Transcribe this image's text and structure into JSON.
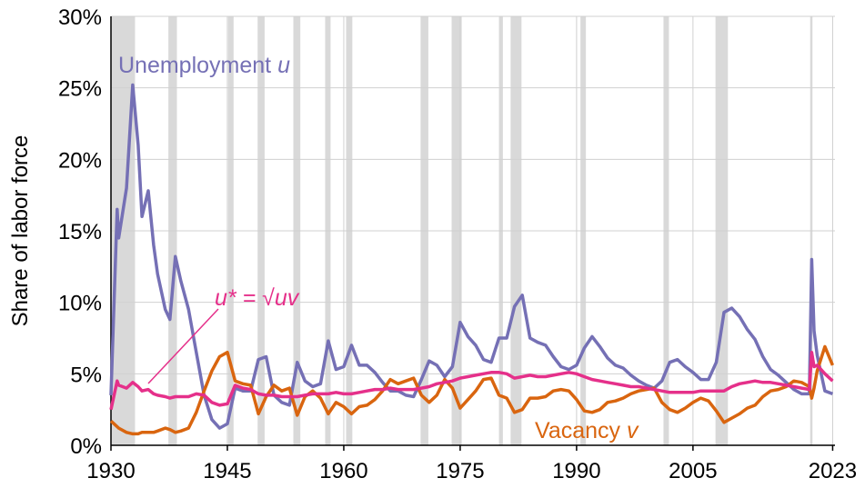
{
  "chart_data": {
    "type": "line",
    "y_label": "Share of labor force",
    "x": [
      1930,
      1930.8,
      1931,
      1932,
      1932.8,
      1933.5,
      1934,
      1934.8,
      1935.5,
      1936,
      1937,
      1937.6,
      1938.3,
      1939,
      1940,
      1941,
      1942,
      1943,
      1944,
      1945,
      1946,
      1947,
      1948,
      1949,
      1950,
      1951,
      1952,
      1953,
      1954,
      1955,
      1956,
      1957,
      1958,
      1959,
      1960,
      1961,
      1962,
      1963,
      1964,
      1965,
      1966,
      1967,
      1968,
      1969,
      1970,
      1971,
      1972,
      1973,
      1974,
      1975,
      1976,
      1977,
      1978,
      1979,
      1980,
      1981,
      1982,
      1983,
      1984,
      1985,
      1986,
      1987,
      1988,
      1989,
      1990,
      1991,
      1992,
      1993,
      1994,
      1995,
      1996,
      1997,
      1998,
      1999,
      2000,
      2001,
      2002,
      2003,
      2004,
      2005,
      2006,
      2007,
      2008,
      2009,
      2010,
      2011,
      2012,
      2013,
      2014,
      2015,
      2016,
      2017,
      2018,
      2019,
      2020,
      2020.3,
      2020.6,
      2021,
      2022,
      2023
    ],
    "series": [
      {
        "name": "Unemployment",
        "var": "u",
        "color": "#7570b5",
        "values": [
          3.5,
          16.5,
          14.5,
          18,
          25.2,
          21,
          16,
          17.8,
          14,
          12,
          9.5,
          8.8,
          13.2,
          11.5,
          9.5,
          6.5,
          3.5,
          1.8,
          1.2,
          1.5,
          4,
          3.8,
          3.8,
          6,
          6.2,
          3.5,
          3.0,
          2.8,
          5.8,
          4.5,
          4.1,
          4.3,
          7.3,
          5.3,
          5.5,
          7,
          5.6,
          5.6,
          5.1,
          4.4,
          3.8,
          3.8,
          3.5,
          3.4,
          4.6,
          5.9,
          5.6,
          4.8,
          5.5,
          8.6,
          7.6,
          7,
          6,
          5.8,
          7.5,
          7.5,
          9.7,
          10.5,
          7.5,
          7.2,
          7,
          6.2,
          5.5,
          5.3,
          5.6,
          6.8,
          7.6,
          6.9,
          6.1,
          5.6,
          5.4,
          4.9,
          4.5,
          4.2,
          4.0,
          4.5,
          5.8,
          6.0,
          5.5,
          5.1,
          4.6,
          4.6,
          5.8,
          9.3,
          9.6,
          9.0,
          8.1,
          7.4,
          6.2,
          5.3,
          4.9,
          4.4,
          3.9,
          3.6,
          3.6,
          13,
          8,
          6.3,
          3.8,
          3.6
        ]
      },
      {
        "name": "Vacancy",
        "var": "v",
        "color": "#d9650f",
        "values": [
          1.7,
          1.3,
          1.2,
          0.9,
          0.8,
          0.8,
          0.9,
          0.9,
          0.9,
          1.0,
          1.2,
          1.1,
          0.9,
          1.0,
          1.2,
          2.3,
          3.8,
          5.2,
          6.2,
          6.5,
          4.5,
          4.3,
          4.2,
          2.2,
          3.4,
          4.2,
          3.8,
          4.0,
          2.1,
          3.4,
          3.8,
          3.3,
          2.2,
          3.0,
          2.7,
          2.2,
          2.7,
          2.8,
          3.2,
          3.8,
          4.6,
          4.3,
          4.5,
          4.7,
          3.5,
          3.0,
          3.5,
          4.6,
          4.0,
          2.6,
          3.2,
          3.8,
          4.6,
          4.7,
          3.5,
          3.3,
          2.3,
          2.5,
          3.3,
          3.3,
          3.4,
          3.8,
          3.9,
          3.8,
          3.2,
          2.4,
          2.3,
          2.5,
          3.0,
          3.1,
          3.3,
          3.6,
          3.8,
          3.9,
          4.0,
          3.0,
          2.5,
          2.3,
          2.6,
          3.0,
          3.3,
          3.1,
          2.4,
          1.6,
          1.9,
          2.2,
          2.6,
          2.8,
          3.4,
          3.8,
          3.9,
          4.1,
          4.5,
          4.4,
          4.1,
          3.3,
          4.0,
          5.2,
          6.9,
          5.6
        ]
      },
      {
        "name": "u* = √uv",
        "color": "#e5308a",
        "values": [
          2.5,
          4.5,
          4.2,
          4.0,
          4.4,
          4.1,
          3.8,
          3.9,
          3.6,
          3.5,
          3.4,
          3.3,
          3.4,
          3.4,
          3.4,
          3.6,
          3.5,
          3.0,
          2.8,
          2.9,
          4.2,
          4.0,
          3.9,
          3.6,
          3.5,
          3.5,
          3.4,
          3.4,
          3.4,
          3.5,
          3.6,
          3.6,
          3.6,
          3.7,
          3.6,
          3.6,
          3.7,
          3.8,
          3.9,
          3.9,
          4.0,
          3.9,
          3.9,
          3.9,
          4.0,
          4.1,
          4.3,
          4.4,
          4.5,
          4.7,
          4.8,
          4.9,
          5.0,
          5.1,
          5.1,
          5.0,
          4.7,
          4.8,
          4.9,
          4.8,
          4.8,
          4.9,
          5.0,
          5.1,
          5.0,
          4.8,
          4.6,
          4.5,
          4.4,
          4.3,
          4.2,
          4.1,
          4.1,
          4.0,
          3.9,
          3.8,
          3.7,
          3.7,
          3.7,
          3.7,
          3.8,
          3.8,
          3.8,
          3.8,
          4.1,
          4.3,
          4.4,
          4.5,
          4.4,
          4.4,
          4.3,
          4.2,
          4.1,
          4.0,
          3.9,
          6.5,
          5.5,
          5.6,
          5.0,
          4.5
        ]
      }
    ],
    "recessions": [
      [
        1930,
        1933.1
      ],
      [
        1937.4,
        1938.5
      ],
      [
        1945.1,
        1945.8
      ],
      [
        1948.9,
        1949.8
      ],
      [
        1953.5,
        1954.4
      ],
      [
        1957.6,
        1958.3
      ],
      [
        1960.3,
        1961.1
      ],
      [
        1969.9,
        1970.9
      ],
      [
        1973.9,
        1975.2
      ],
      [
        1980.0,
        1980.5
      ],
      [
        1981.5,
        1982.9
      ],
      [
        1990.5,
        1991.2
      ],
      [
        2001.2,
        2001.9
      ],
      [
        2007.9,
        2009.5
      ],
      [
        2020.1,
        2020.4
      ]
    ],
    "recession_color": "#d9d9d9",
    "xlim": [
      1930,
      2023.3
    ],
    "ylim": [
      0,
      30
    ],
    "xticks": [
      1930,
      1945,
      1960,
      1975,
      1990,
      2005,
      2023
    ],
    "yticks": [
      {
        "value": 0,
        "label": "0%"
      },
      {
        "value": 5,
        "label": "5%"
      },
      {
        "value": 10,
        "label": "10%"
      },
      {
        "value": 15,
        "label": "15%"
      },
      {
        "value": 20,
        "label": "20%"
      },
      {
        "value": 25,
        "label": "25%"
      },
      {
        "value": 30,
        "label": "30%"
      }
    ],
    "grid": true
  }
}
